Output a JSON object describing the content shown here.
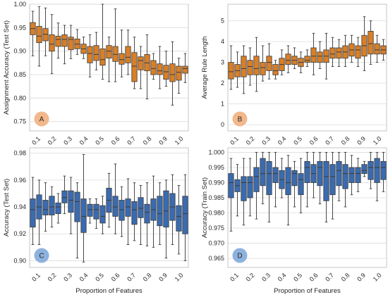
{
  "chart_data": [
    {
      "type": "boxplot",
      "panel": "A",
      "ylabel": "Assignment Accuracy (Test Set)",
      "xlabel": "",
      "ylim": [
        0.73,
        1.0
      ],
      "yticks": [
        "0.75",
        "0.80",
        "0.85",
        "0.90",
        "0.95",
        "1.00"
      ],
      "color": "#D97F27",
      "badge_color": "#F2B88C",
      "x_tick_labels": [
        "0.1",
        "0.2",
        "0.3",
        "0.4",
        "0.5",
        "0.6",
        "0.7",
        "0.8",
        "0.9",
        "1.0"
      ],
      "boxes": [
        {
          "whislo": 0.89,
          "q1": 0.935,
          "med": 0.948,
          "q3": 0.961,
          "whishi": 0.985
        },
        {
          "whislo": 0.868,
          "q1": 0.918,
          "med": 0.932,
          "q3": 0.953,
          "whishi": 0.995
        },
        {
          "whislo": 0.89,
          "q1": 0.922,
          "med": 0.936,
          "q3": 0.948,
          "whishi": 0.992
        },
        {
          "whislo": 0.852,
          "q1": 0.9,
          "med": 0.915,
          "q3": 0.935,
          "whishi": 0.978
        },
        {
          "whislo": 0.885,
          "q1": 0.91,
          "med": 0.925,
          "q3": 0.932,
          "whishi": 0.96
        },
        {
          "whislo": 0.873,
          "q1": 0.91,
          "med": 0.925,
          "q3": 0.935,
          "whishi": 0.955
        },
        {
          "whislo": 0.884,
          "q1": 0.903,
          "med": 0.925,
          "q3": 0.93,
          "whishi": 0.955
        },
        {
          "whislo": 0.893,
          "q1": 0.905,
          "med": 0.915,
          "q3": 0.926,
          "whishi": 0.946
        },
        {
          "whislo": 0.884,
          "q1": 0.895,
          "med": 0.905,
          "q3": 0.915,
          "whishi": 0.93
        },
        {
          "whislo": 0.845,
          "q1": 0.875,
          "med": 0.895,
          "q3": 0.91,
          "whishi": 0.935
        },
        {
          "whislo": 0.86,
          "q1": 0.88,
          "med": 0.893,
          "q3": 0.912,
          "whishi": 0.94
        },
        {
          "whislo": 0.84,
          "q1": 0.87,
          "med": 0.882,
          "q3": 0.905,
          "whishi": 1.0
        },
        {
          "whislo": 0.835,
          "q1": 0.885,
          "med": 0.9,
          "q3": 0.912,
          "whishi": 0.93
        },
        {
          "whislo": 0.835,
          "q1": 0.878,
          "med": 0.893,
          "q3": 0.91,
          "whishi": 0.99
        },
        {
          "whislo": 0.845,
          "q1": 0.872,
          "med": 0.882,
          "q3": 0.895,
          "whishi": 0.945
        },
        {
          "whislo": 0.85,
          "q1": 0.875,
          "med": 0.887,
          "q3": 0.91,
          "whishi": 0.945
        },
        {
          "whislo": 0.82,
          "q1": 0.835,
          "med": 0.868,
          "q3": 0.897,
          "whishi": 0.93
        },
        {
          "whislo": 0.82,
          "q1": 0.86,
          "med": 0.88,
          "q3": 0.888,
          "whishi": 0.91
        },
        {
          "whislo": 0.798,
          "q1": 0.858,
          "med": 0.875,
          "q3": 0.893,
          "whishi": 0.935
        },
        {
          "whislo": 0.84,
          "q1": 0.85,
          "med": 0.863,
          "q3": 0.88,
          "whishi": 0.895
        },
        {
          "whislo": 0.82,
          "q1": 0.85,
          "med": 0.858,
          "q3": 0.873,
          "whishi": 0.91
        },
        {
          "whislo": 0.825,
          "q1": 0.84,
          "med": 0.856,
          "q3": 0.87,
          "whishi": 0.9
        },
        {
          "whislo": 0.785,
          "q1": 0.835,
          "med": 0.85,
          "q3": 0.873,
          "whishi": 0.92
        },
        {
          "whislo": 0.81,
          "q1": 0.838,
          "med": 0.855,
          "q3": 0.868,
          "whishi": 0.885
        },
        {
          "whislo": 0.833,
          "q1": 0.853,
          "med": 0.863,
          "q3": 0.868,
          "whishi": 0.895
        }
      ]
    },
    {
      "type": "boxplot",
      "panel": "B",
      "ylabel": "Average Rule Length",
      "xlabel": "",
      "ylim": [
        -0.3,
        5.8
      ],
      "yticks": [
        "0",
        "1",
        "2",
        "3",
        "4",
        "5"
      ],
      "color": "#D97F27",
      "badge_color": "#F2B88C",
      "x_tick_labels": [
        "0.1",
        "0.2",
        "0.3",
        "0.4",
        "0.5",
        "0.6",
        "0.7",
        "0.8",
        "0.9",
        "1.0"
      ],
      "boxes": [
        {
          "whislo": 1.7,
          "q1": 2.2,
          "med": 2.55,
          "q3": 3.0,
          "whishi": 3.8
        },
        {
          "whislo": 1.8,
          "q1": 2.3,
          "med": 2.6,
          "q3": 2.9,
          "whishi": 3.5
        },
        {
          "whislo": 1.5,
          "q1": 2.3,
          "med": 2.7,
          "q3": 3.3,
          "whishi": 3.8
        },
        {
          "whislo": 1.9,
          "q1": 2.4,
          "med": 2.8,
          "q3": 3.1,
          "whishi": 3.7
        },
        {
          "whislo": 1.6,
          "q1": 2.4,
          "med": 2.7,
          "q3": 3.3,
          "whishi": 4.2
        },
        {
          "whislo": 2.1,
          "q1": 2.4,
          "med": 2.75,
          "q3": 3.0,
          "whishi": 3.8
        },
        {
          "whislo": 2.2,
          "q1": 2.6,
          "med": 3.0,
          "q3": 3.3,
          "whishi": 3.9
        },
        {
          "whislo": 2.2,
          "q1": 2.4,
          "med": 2.6,
          "q3": 2.9,
          "whishi": 3.1
        },
        {
          "whislo": 2.4,
          "q1": 2.6,
          "med": 2.9,
          "q3": 3.2,
          "whishi": 3.6
        },
        {
          "whislo": 2.5,
          "q1": 2.9,
          "med": 3.1,
          "q3": 3.4,
          "whishi": 3.8
        },
        {
          "whislo": 2.7,
          "q1": 2.9,
          "med": 3.1,
          "q3": 3.3,
          "whishi": 3.7
        },
        {
          "whislo": 2.5,
          "q1": 2.8,
          "med": 3.0,
          "q3": 3.2,
          "whishi": 3.5
        },
        {
          "whislo": 2.8,
          "q1": 3.0,
          "med": 3.1,
          "q3": 3.3,
          "whishi": 3.6
        },
        {
          "whislo": 2.4,
          "q1": 3.0,
          "med": 3.3,
          "q3": 3.7,
          "whishi": 4.4
        },
        {
          "whislo": 2.7,
          "q1": 3.0,
          "med": 3.3,
          "q3": 3.5,
          "whishi": 4.0
        },
        {
          "whislo": 2.2,
          "q1": 3.0,
          "med": 3.3,
          "q3": 3.6,
          "whishi": 4.4
        },
        {
          "whislo": 2.8,
          "q1": 3.2,
          "med": 3.4,
          "q3": 3.7,
          "whishi": 4.2
        },
        {
          "whislo": 2.8,
          "q1": 3.2,
          "med": 3.5,
          "q3": 3.7,
          "whishi": 4.1
        },
        {
          "whislo": 2.8,
          "q1": 3.2,
          "med": 3.5,
          "q3": 3.8,
          "whishi": 4.3
        },
        {
          "whislo": 3.0,
          "q1": 3.3,
          "med": 3.6,
          "q3": 3.9,
          "whishi": 4.3
        },
        {
          "whislo": 2.8,
          "q1": 3.2,
          "med": 3.6,
          "q3": 3.8,
          "whishi": 4.2
        },
        {
          "whislo": 2.6,
          "q1": 3.3,
          "med": 3.8,
          "q3": 4.3,
          "whishi": 5.2
        },
        {
          "whislo": 2.9,
          "q1": 3.4,
          "med": 3.9,
          "q3": 4.5,
          "whishi": 5.0
        },
        {
          "whislo": 3.0,
          "q1": 3.4,
          "med": 3.6,
          "q3": 3.9,
          "whishi": 4.3
        },
        {
          "whislo": 3.1,
          "q1": 3.4,
          "med": 3.6,
          "q3": 3.8,
          "whishi": 4.1
        }
      ]
    },
    {
      "type": "boxplot",
      "panel": "C",
      "ylabel": "Accuracy (Test Set)",
      "xlabel": "Proportion of Features",
      "ylim": [
        0.895,
        0.984
      ],
      "yticks": [
        "0.90",
        "0.92",
        "0.94",
        "0.96",
        "0.98"
      ],
      "color": "#3A6BB0",
      "badge_color": "#8EB2DE",
      "x_tick_labels": [
        "0.1",
        "0.2",
        "0.3",
        "0.4",
        "0.5",
        "0.6",
        "0.7",
        "0.8",
        "0.9",
        "1.0"
      ],
      "boxes": [
        {
          "whislo": 0.912,
          "q1": 0.925,
          "med": 0.938,
          "q3": 0.946,
          "whishi": 0.962
        },
        {
          "whislo": 0.912,
          "q1": 0.931,
          "med": 0.94,
          "q3": 0.949,
          "whishi": 0.96
        },
        {
          "whislo": 0.922,
          "q1": 0.934,
          "med": 0.938,
          "q3": 0.945,
          "whishi": 0.958
        },
        {
          "whislo": 0.925,
          "q1": 0.934,
          "med": 0.94,
          "q3": 0.948,
          "whishi": 0.955
        },
        {
          "whislo": 0.928,
          "q1": 0.935,
          "med": 0.94,
          "q3": 0.943,
          "whishi": 0.95
        },
        {
          "whislo": 0.935,
          "q1": 0.943,
          "med": 0.947,
          "q3": 0.952,
          "whishi": 0.963
        },
        {
          "whislo": 0.92,
          "q1": 0.936,
          "med": 0.945,
          "q3": 0.952,
          "whishi": 0.962
        },
        {
          "whislo": 0.902,
          "q1": 0.929,
          "med": 0.944,
          "q3": 0.951,
          "whishi": 0.958
        },
        {
          "whislo": 0.899,
          "q1": 0.921,
          "med": 0.933,
          "q3": 0.946,
          "whishi": 0.979
        },
        {
          "whislo": 0.928,
          "q1": 0.933,
          "med": 0.938,
          "q3": 0.942,
          "whishi": 0.946
        },
        {
          "whislo": 0.924,
          "q1": 0.931,
          "med": 0.938,
          "q3": 0.942,
          "whishi": 0.946
        },
        {
          "whislo": 0.92,
          "q1": 0.928,
          "med": 0.933,
          "q3": 0.941,
          "whishi": 0.948
        },
        {
          "whislo": 0.925,
          "q1": 0.936,
          "med": 0.945,
          "q3": 0.954,
          "whishi": 0.965
        },
        {
          "whislo": 0.92,
          "q1": 0.933,
          "med": 0.94,
          "q3": 0.948,
          "whishi": 0.972
        },
        {
          "whislo": 0.918,
          "q1": 0.93,
          "med": 0.938,
          "q3": 0.945,
          "whishi": 0.955
        },
        {
          "whislo": 0.912,
          "q1": 0.933,
          "med": 0.94,
          "q3": 0.946,
          "whishi": 0.961
        },
        {
          "whislo": 0.915,
          "q1": 0.927,
          "med": 0.938,
          "q3": 0.944,
          "whishi": 0.958
        },
        {
          "whislo": 0.912,
          "q1": 0.932,
          "med": 0.939,
          "q3": 0.947,
          "whishi": 0.956
        },
        {
          "whislo": 0.911,
          "q1": 0.928,
          "med": 0.936,
          "q3": 0.942,
          "whishi": 0.958
        },
        {
          "whislo": 0.91,
          "q1": 0.93,
          "med": 0.938,
          "q3": 0.946,
          "whishi": 0.963
        },
        {
          "whislo": 0.912,
          "q1": 0.926,
          "med": 0.935,
          "q3": 0.948,
          "whishi": 0.958
        },
        {
          "whislo": 0.902,
          "q1": 0.925,
          "med": 0.937,
          "q3": 0.952,
          "whishi": 0.96
        },
        {
          "whislo": 0.912,
          "q1": 0.93,
          "med": 0.94,
          "q3": 0.95,
          "whishi": 0.964
        },
        {
          "whislo": 0.905,
          "q1": 0.922,
          "med": 0.933,
          "q3": 0.941,
          "whishi": 0.956
        },
        {
          "whislo": 0.9,
          "q1": 0.92,
          "med": 0.935,
          "q3": 0.948,
          "whishi": 0.964
        }
      ]
    },
    {
      "type": "boxplot",
      "panel": "D",
      "ylabel": "Accuracy (Train Set)",
      "xlabel": "Proportion of Features",
      "ylim": [
        0.962,
        1.0015
      ],
      "yticks": [
        "0.965",
        "0.970",
        "0.975",
        "0.980",
        "0.985",
        "0.990",
        "0.995",
        "1.000"
      ],
      "color": "#3A6BB0",
      "badge_color": "#8EB2DE",
      "x_tick_labels": [
        "0.1",
        "0.2",
        "0.3",
        "0.4",
        "0.5",
        "0.6",
        "0.7",
        "0.8",
        "0.9",
        "1.0"
      ],
      "boxes": [
        {
          "whislo": 0.974,
          "q1": 0.985,
          "med": 0.99,
          "q3": 0.993,
          "whishi": 0.998
        },
        {
          "whislo": 0.979,
          "q1": 0.987,
          "med": 0.989,
          "q3": 0.991,
          "whishi": 0.996
        },
        {
          "whislo": 0.976,
          "q1": 0.984,
          "med": 0.99,
          "q3": 0.992,
          "whishi": 0.998
        },
        {
          "whislo": 0.979,
          "q1": 0.985,
          "med": 0.99,
          "q3": 0.992,
          "whishi": 0.998
        },
        {
          "whislo": 0.978,
          "q1": 0.987,
          "med": 0.992,
          "q3": 0.995,
          "whishi": 1.0
        },
        {
          "whislo": 0.983,
          "q1": 0.989,
          "med": 0.993,
          "q3": 0.998,
          "whishi": 1.0
        },
        {
          "whislo": 0.977,
          "q1": 0.986,
          "med": 0.993,
          "q3": 0.997,
          "whishi": 1.0
        },
        {
          "whislo": 0.982,
          "q1": 0.99,
          "med": 0.993,
          "q3": 0.995,
          "whishi": 1.0
        },
        {
          "whislo": 0.985,
          "q1": 0.988,
          "med": 0.991,
          "q3": 0.994,
          "whishi": 0.998
        },
        {
          "whislo": 0.976,
          "q1": 0.986,
          "med": 0.99,
          "q3": 0.995,
          "whishi": 0.999
        },
        {
          "whislo": 0.982,
          "q1": 0.989,
          "med": 0.993,
          "q3": 0.994,
          "whishi": 0.997
        },
        {
          "whislo": 0.98,
          "q1": 0.986,
          "med": 0.991,
          "q3": 0.993,
          "whishi": 0.998
        },
        {
          "whislo": 0.982,
          "q1": 0.99,
          "med": 0.995,
          "q3": 0.997,
          "whishi": 1.0
        },
        {
          "whislo": 0.985,
          "q1": 0.99,
          "med": 0.993,
          "q3": 0.996,
          "whishi": 1.0
        },
        {
          "whislo": 0.983,
          "q1": 0.989,
          "med": 0.995,
          "q3": 0.997,
          "whishi": 1.0
        },
        {
          "whislo": 0.977,
          "q1": 0.984,
          "med": 0.992,
          "q3": 0.997,
          "whishi": 1.0
        },
        {
          "whislo": 0.978,
          "q1": 0.986,
          "med": 0.992,
          "q3": 0.996,
          "whishi": 1.0
        },
        {
          "whislo": 0.984,
          "q1": 0.989,
          "med": 0.994,
          "q3": 0.997,
          "whishi": 1.0
        },
        {
          "whislo": 0.982,
          "q1": 0.988,
          "med": 0.993,
          "q3": 0.996,
          "whishi": 1.0
        },
        {
          "whislo": 0.986,
          "q1": 0.99,
          "med": 0.993,
          "q3": 0.995,
          "whishi": 0.999
        },
        {
          "whislo": 0.987,
          "q1": 0.99,
          "med": 0.993,
          "q3": 0.995,
          "whishi": 0.998
        },
        {
          "whislo": 0.992,
          "q1": 0.993,
          "med": 0.994,
          "q3": 0.996,
          "whishi": 0.997
        },
        {
          "whislo": 0.988,
          "q1": 0.991,
          "med": 0.995,
          "q3": 0.997,
          "whishi": 1.0
        },
        {
          "whislo": 0.984,
          "q1": 0.99,
          "med": 0.995,
          "q3": 0.998,
          "whishi": 1.0
        },
        {
          "whislo": 0.987,
          "q1": 0.991,
          "med": 0.995,
          "q3": 0.997,
          "whishi": 1.0
        }
      ]
    }
  ]
}
